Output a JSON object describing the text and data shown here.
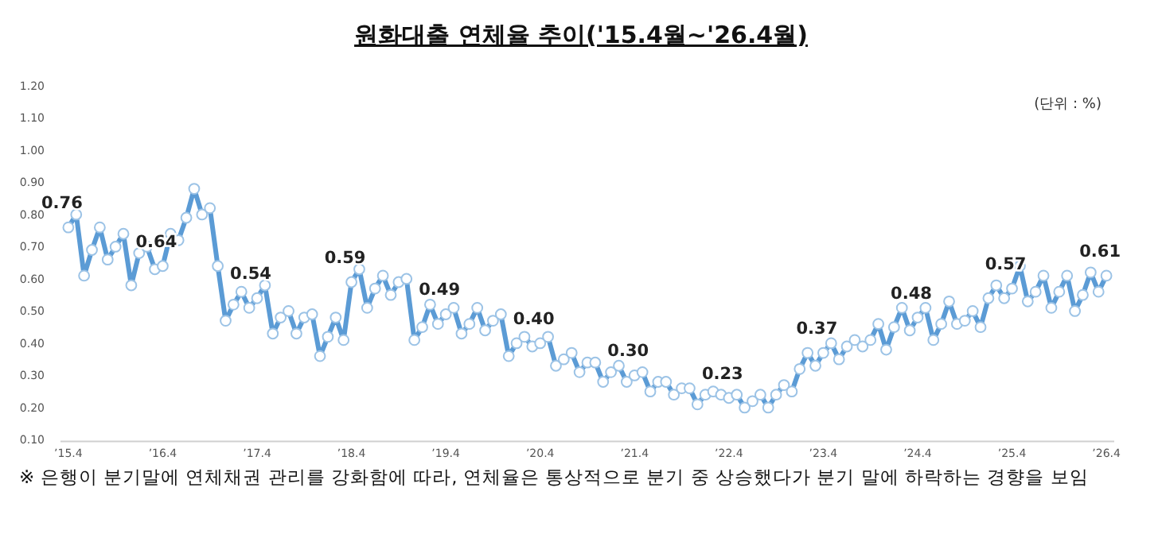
{
  "chart_data": {
    "type": "line",
    "title": "원화대출 연체율 추이('15.4월~'26.4월)",
    "annotations": [
      "(단위 : %)",
      "※ 은행이 분기말에 연체채권 관리를 강화함에 따라, 연체율은 통상적으로 분기 중 상승했다가 분기 말에 하락하는 경향을 보임"
    ],
    "x": [
      "2015-04",
      "2015-05",
      "2015-06",
      "2015-07",
      "2015-08",
      "2015-09",
      "2015-10",
      "2015-11",
      "2015-12",
      "2016-01",
      "2016-02",
      "2016-03",
      "2016-04",
      "2016-05",
      "2016-06",
      "2016-07",
      "2016-08",
      "2016-09",
      "2016-10",
      "2016-11",
      "2016-12",
      "2017-01",
      "2017-02",
      "2017-03",
      "2017-04",
      "2017-05",
      "2017-06",
      "2017-07",
      "2017-08",
      "2017-09",
      "2017-10",
      "2017-11",
      "2017-12",
      "2018-01",
      "2018-02",
      "2018-03",
      "2018-04",
      "2018-05",
      "2018-06",
      "2018-07",
      "2018-08",
      "2018-09",
      "2018-10",
      "2018-11",
      "2018-12",
      "2019-01",
      "2019-02",
      "2019-03",
      "2019-04",
      "2019-05",
      "2019-06",
      "2019-07",
      "2019-08",
      "2019-09",
      "2019-10",
      "2019-11",
      "2019-12",
      "2020-01",
      "2020-02",
      "2020-03",
      "2020-04",
      "2020-05",
      "2020-06",
      "2020-07",
      "2020-08",
      "2020-09",
      "2020-10",
      "2020-11",
      "2020-12",
      "2021-01",
      "2021-02",
      "2021-03",
      "2021-04",
      "2021-05",
      "2021-06",
      "2021-07",
      "2021-08",
      "2021-09",
      "2021-10",
      "2021-11",
      "2021-12",
      "2022-01",
      "2022-02",
      "2022-03",
      "2022-04",
      "2022-05",
      "2022-06",
      "2022-07",
      "2022-08",
      "2022-09",
      "2022-10",
      "2022-11",
      "2022-12",
      "2023-01",
      "2023-02",
      "2023-03",
      "2023-04",
      "2023-05",
      "2023-06",
      "2023-07",
      "2023-08",
      "2023-09",
      "2023-10",
      "2023-11",
      "2023-12",
      "2024-01",
      "2024-02",
      "2024-03",
      "2024-04",
      "2024-05",
      "2024-06",
      "2024-07",
      "2024-08",
      "2024-09",
      "2024-10",
      "2024-11",
      "2024-12",
      "2025-01",
      "2025-02",
      "2025-03",
      "2025-04",
      "2025-05",
      "2025-06",
      "2025-07",
      "2025-08",
      "2025-09",
      "2025-10",
      "2025-11",
      "2025-12",
      "2026-01",
      "2026-02",
      "2026-03",
      "2026-04"
    ],
    "series": [
      {
        "color": "#5b9bd5",
        "values": [
          0.76,
          0.8,
          0.61,
          0.69,
          0.76,
          0.66,
          0.7,
          0.74,
          0.58,
          0.68,
          0.7,
          0.63,
          0.64,
          0.74,
          0.72,
          0.79,
          0.88,
          0.8,
          0.82,
          0.64,
          0.47,
          0.52,
          0.56,
          0.51,
          0.54,
          0.58,
          0.43,
          0.48,
          0.5,
          0.43,
          0.48,
          0.49,
          0.36,
          0.42,
          0.48,
          0.41,
          0.59,
          0.63,
          0.51,
          0.57,
          0.61,
          0.55,
          0.59,
          0.6,
          0.41,
          0.45,
          0.52,
          0.46,
          0.49,
          0.51,
          0.43,
          0.46,
          0.51,
          0.44,
          0.47,
          0.49,
          0.36,
          0.4,
          0.42,
          0.39,
          0.4,
          0.42,
          0.33,
          0.35,
          0.37,
          0.31,
          0.34,
          0.34,
          0.28,
          0.31,
          0.33,
          0.28,
          0.3,
          0.31,
          0.25,
          0.28,
          0.28,
          0.24,
          0.26,
          0.26,
          0.21,
          0.24,
          0.25,
          0.24,
          0.23,
          0.24,
          0.2,
          0.22,
          0.24,
          0.2,
          0.24,
          0.27,
          0.25,
          0.32,
          0.37,
          0.33,
          0.37,
          0.4,
          0.35,
          0.39,
          0.41,
          0.39,
          0.41,
          0.46,
          0.38,
          0.45,
          0.51,
          0.44,
          0.48,
          0.51,
          0.41,
          0.46,
          0.53,
          0.46,
          0.47,
          0.5,
          0.45,
          0.54,
          0.58,
          0.54,
          0.57,
          0.64,
          0.53,
          0.56,
          0.61,
          0.51,
          0.56,
          0.61,
          0.5,
          0.55,
          0.62,
          0.56,
          0.61
        ],
        "value_labels": [
          "0.76",
          null,
          null,
          null,
          null,
          null,
          null,
          null,
          null,
          null,
          null,
          null,
          "0.64",
          null,
          null,
          null,
          null,
          null,
          null,
          null,
          null,
          null,
          null,
          null,
          "0.54",
          null,
          null,
          null,
          null,
          null,
          null,
          null,
          null,
          null,
          null,
          null,
          "0.59",
          null,
          null,
          null,
          null,
          null,
          null,
          null,
          null,
          null,
          null,
          null,
          "0.49",
          null,
          null,
          null,
          null,
          null,
          null,
          null,
          null,
          null,
          null,
          null,
          "0.40",
          null,
          null,
          null,
          null,
          null,
          null,
          null,
          null,
          null,
          null,
          null,
          "0.30",
          null,
          null,
          null,
          null,
          null,
          null,
          null,
          null,
          null,
          null,
          null,
          "0.23",
          null,
          null,
          null,
          null,
          null,
          null,
          null,
          null,
          null,
          null,
          null,
          "0.37",
          null,
          null,
          null,
          null,
          null,
          null,
          null,
          null,
          null,
          null,
          null,
          "0.48",
          null,
          null,
          null,
          null,
          null,
          null,
          null,
          null,
          null,
          null,
          null,
          "0.57",
          null,
          null,
          null,
          null,
          null,
          null,
          null,
          null,
          null,
          null,
          null,
          "0.61"
        ]
      }
    ],
    "xlim": [
      "2015-03",
      "2026-05"
    ],
    "xticks": [
      {
        "value": "2015-04",
        "label": "’15.4"
      },
      {
        "value": "2016-04",
        "label": "’16.4"
      },
      {
        "value": "2017-04",
        "label": "’17.4"
      },
      {
        "value": "2018-04",
        "label": "’18.4"
      },
      {
        "value": "2019-04",
        "label": "’19.4"
      },
      {
        "value": "2020-04",
        "label": "’20.4"
      },
      {
        "value": "2021-04",
        "label": "’21.4"
      },
      {
        "value": "2022-04",
        "label": "’22.4"
      },
      {
        "value": "2023-04",
        "label": "’23.4"
      },
      {
        "value": "2024-04",
        "label": "’24.4"
      },
      {
        "value": "2025-04",
        "label": "’25.4"
      },
      {
        "value": "2026-04",
        "label": "’26.4"
      }
    ],
    "ylim": [
      0.1,
      1.2
    ],
    "yticks": [
      {
        "value": 0.1,
        "label": "0.10"
      },
      {
        "value": 0.2,
        "label": "0.20"
      },
      {
        "value": 0.3,
        "label": "0.30"
      },
      {
        "value": 0.4,
        "label": "0.40"
      },
      {
        "value": 0.5,
        "label": "0.50"
      },
      {
        "value": 0.6,
        "label": "0.60"
      },
      {
        "value": 0.7,
        "label": "0.70"
      },
      {
        "value": 0.8,
        "label": "0.80"
      },
      {
        "value": 0.9,
        "label": "0.90"
      },
      {
        "value": 1.0,
        "label": "1.00"
      },
      {
        "value": 1.1,
        "label": "1.10"
      },
      {
        "value": 1.2,
        "label": "1.20"
      }
    ],
    "marker": "circle",
    "line_style": "solid",
    "grid": false
  }
}
